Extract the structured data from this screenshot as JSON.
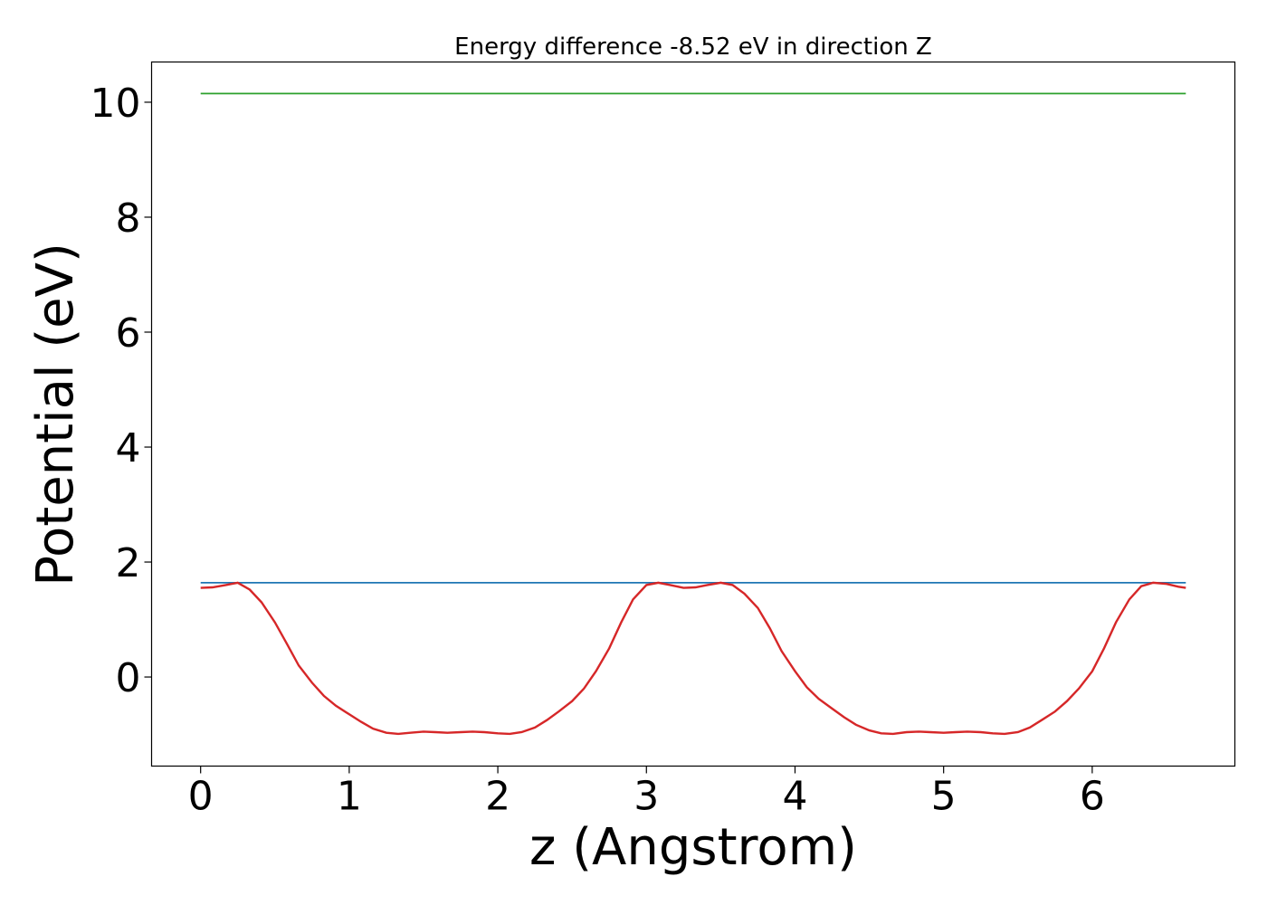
{
  "chart_data": {
    "type": "line",
    "title": "Energy difference -8.52 eV in direction Z",
    "xlabel": "z (Angstrom)",
    "ylabel": "Potential (eV)",
    "xlim": [
      -0.33,
      6.96
    ],
    "ylim": [
      -1.55,
      10.7
    ],
    "x_ticks": [
      0,
      1,
      2,
      3,
      4,
      5,
      6
    ],
    "x_tick_labels": [
      "0",
      "1",
      "2",
      "3",
      "4",
      "5",
      "6"
    ],
    "y_ticks": [
      0,
      2,
      4,
      6,
      8,
      10
    ],
    "y_tick_labels": [
      "0",
      "2",
      "4",
      "6",
      "8",
      "10"
    ],
    "grid": false,
    "series": [
      {
        "color": "#2ca02c",
        "x": [
          0,
          6.63
        ],
        "y": [
          10.15,
          10.15
        ]
      },
      {
        "color": "#1f77b4",
        "x": [
          0,
          6.63
        ],
        "y": [
          1.64,
          1.64
        ]
      },
      {
        "color": "#d62728",
        "x": [
          0,
          0.08,
          0.17,
          0.25,
          0.33,
          0.41,
          0.5,
          0.58,
          0.66,
          0.75,
          0.83,
          0.91,
          1.0,
          1.08,
          1.16,
          1.25,
          1.33,
          1.41,
          1.5,
          1.58,
          1.66,
          1.75,
          1.83,
          1.91,
          2.0,
          2.08,
          2.16,
          2.25,
          2.33,
          2.41,
          2.5,
          2.58,
          2.66,
          2.75,
          2.83,
          2.91,
          3.0,
          3.08,
          3.16,
          3.25,
          3.33,
          3.41,
          3.5,
          3.58,
          3.66,
          3.75,
          3.83,
          3.91,
          4.0,
          4.08,
          4.16,
          4.25,
          4.33,
          4.41,
          4.5,
          4.58,
          4.66,
          4.75,
          4.83,
          4.91,
          5.0,
          5.08,
          5.16,
          5.25,
          5.33,
          5.41,
          5.5,
          5.58,
          5.66,
          5.75,
          5.83,
          5.91,
          6.0,
          6.08,
          6.16,
          6.25,
          6.33,
          6.41,
          6.5,
          6.58,
          6.63
        ],
        "y": [
          1.55,
          1.56,
          1.6,
          1.64,
          1.52,
          1.3,
          0.95,
          0.58,
          0.2,
          -0.1,
          -0.33,
          -0.5,
          -0.65,
          -0.78,
          -0.9,
          -0.97,
          -0.99,
          -0.97,
          -0.95,
          -0.96,
          -0.97,
          -0.96,
          -0.95,
          -0.96,
          -0.98,
          -0.99,
          -0.96,
          -0.88,
          -0.75,
          -0.6,
          -0.42,
          -0.2,
          0.1,
          0.5,
          0.95,
          1.35,
          1.6,
          1.64,
          1.6,
          1.55,
          1.56,
          1.6,
          1.64,
          1.6,
          1.45,
          1.2,
          0.85,
          0.45,
          0.1,
          -0.18,
          -0.38,
          -0.55,
          -0.7,
          -0.83,
          -0.93,
          -0.98,
          -0.99,
          -0.96,
          -0.95,
          -0.96,
          -0.97,
          -0.96,
          -0.95,
          -0.96,
          -0.98,
          -0.99,
          -0.96,
          -0.88,
          -0.75,
          -0.6,
          -0.42,
          -0.2,
          0.1,
          0.5,
          0.95,
          1.35,
          1.58,
          1.64,
          1.62,
          1.57,
          1.55
        ]
      }
    ]
  }
}
